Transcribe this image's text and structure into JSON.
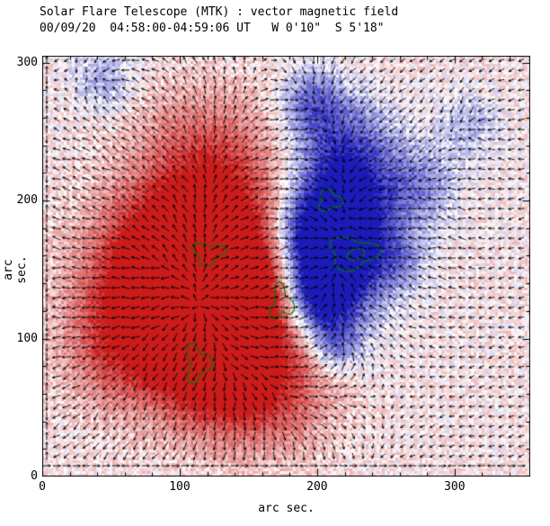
{
  "chart_data": {
    "type": "heatmap",
    "title": "Solar Flare Telescope (MTK) : vector magnetic field",
    "subtitle": "00/09/20  04:58:00-04:59:06 UT   W 0'10\"  S 5'18\"",
    "xlabel": "arc sec.",
    "ylabel": "arc sec.",
    "xlim": [
      0,
      355
    ],
    "ylim": [
      0,
      305
    ],
    "xticks": [
      0,
      100,
      200,
      300
    ],
    "yticks": [
      0,
      100,
      200,
      300
    ],
    "minor_tick_step": 20,
    "colors": {
      "positive": "#cd1e1e",
      "negative": "#1e1ebe",
      "contour": "#007a00",
      "vector": "#000000",
      "axis": "#000000",
      "background": "#ffffff"
    },
    "baseline": 0.06,
    "noise": 0.18,
    "arrow_spacing_px": 11,
    "bias": [
      -0.22,
      -0.05
    ],
    "field_blobs": [
      {
        "x": 110,
        "y": 120,
        "r": 40,
        "a": 1.15
      },
      {
        "x": 85,
        "y": 155,
        "r": 35,
        "a": 0.9
      },
      {
        "x": 130,
        "y": 75,
        "r": 30,
        "a": 0.9
      },
      {
        "x": 125,
        "y": 175,
        "r": 35,
        "a": 0.85
      },
      {
        "x": 150,
        "y": 130,
        "r": 30,
        "a": 0.8
      },
      {
        "x": 120,
        "y": 230,
        "r": 35,
        "a": 0.6
      },
      {
        "x": 60,
        "y": 95,
        "r": 30,
        "a": 0.6
      },
      {
        "x": 170,
        "y": 60,
        "r": 30,
        "a": 0.5
      },
      {
        "x": 212,
        "y": 150,
        "r": 26,
        "a": -1.2
      },
      {
        "x": 200,
        "y": 175,
        "r": 22,
        "a": -1.0
      },
      {
        "x": 222,
        "y": 195,
        "r": 22,
        "a": -0.95
      },
      {
        "x": 218,
        "y": 235,
        "r": 25,
        "a": -0.85
      },
      {
        "x": 200,
        "y": 128,
        "r": 18,
        "a": -0.8
      },
      {
        "x": 213,
        "y": 97,
        "r": 14,
        "a": -0.6
      },
      {
        "x": 197,
        "y": 272,
        "r": 16,
        "a": -0.6
      },
      {
        "x": 272,
        "y": 210,
        "r": 20,
        "a": -0.5
      },
      {
        "x": 258,
        "y": 160,
        "r": 16,
        "a": -0.4
      },
      {
        "x": 45,
        "y": 288,
        "r": 16,
        "a": -0.35
      },
      {
        "x": 310,
        "y": 255,
        "r": 16,
        "a": -0.3
      }
    ],
    "contours": [
      {
        "cx": 226,
        "cy": 162,
        "rx": 17,
        "ry": 11,
        "w": 0.25,
        "k": 3,
        "p": 1.0
      },
      {
        "cx": 228,
        "cy": 161,
        "rx": 6,
        "ry": 4,
        "w": 0.2,
        "k": 2,
        "p": 0.0
      },
      {
        "cx": 209,
        "cy": 200,
        "rx": 8,
        "ry": 7,
        "w": 0.3,
        "k": 3,
        "p": 2.0
      },
      {
        "cx": 121,
        "cy": 162,
        "rx": 11,
        "ry": 7,
        "w": 0.3,
        "k": 3,
        "p": 0.5
      },
      {
        "cx": 113,
        "cy": 82,
        "rx": 8,
        "ry": 12,
        "w": 0.35,
        "k": 3,
        "p": 1.5
      },
      {
        "cx": 174,
        "cy": 126,
        "rx": 7,
        "ry": 11,
        "w": 0.4,
        "k": 3,
        "p": 2.5
      }
    ]
  }
}
